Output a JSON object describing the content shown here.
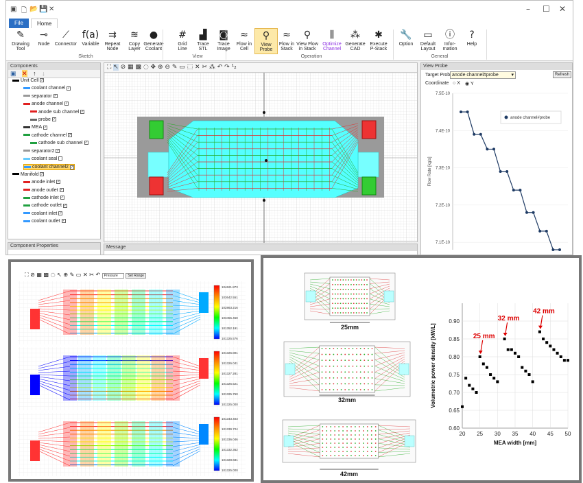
{
  "tabs": {
    "file": "File",
    "home": "Home"
  },
  "ribbon": {
    "buttons": [
      {
        "label": "Drawing\nTool",
        "icon": "pen-icon",
        "glyph": "✎"
      },
      {
        "label": "Node",
        "icon": "node-icon",
        "glyph": "⊸"
      },
      {
        "label": "Connector",
        "icon": "connector-icon",
        "glyph": "⟋"
      },
      {
        "label": "Variable",
        "icon": "fx-icon",
        "glyph": "f(a)"
      },
      {
        "label": "Repeat\nNode",
        "icon": "repeat-icon",
        "glyph": "⇉"
      },
      {
        "label": "Copy\nLayer",
        "icon": "layers-icon",
        "glyph": "≋"
      },
      {
        "label": "Generate\nCoolant",
        "icon": "droplet-icon",
        "glyph": "●"
      },
      {
        "label": "Grid\nLine",
        "icon": "grid-icon",
        "glyph": "#"
      },
      {
        "label": "Trace\nSTL",
        "icon": "trace-icon",
        "glyph": "▟"
      },
      {
        "label": "Trace\nImage",
        "icon": "camera-icon",
        "glyph": "◙"
      },
      {
        "label": "Flow in\nCell",
        "icon": "flow-icon",
        "glyph": "≈"
      },
      {
        "label": "View\nProbe",
        "icon": "magnifier-icon",
        "glyph": "⚲"
      },
      {
        "label": "Flow in\nStack",
        "icon": "stack-icon",
        "glyph": "≈"
      },
      {
        "label": "View Flow\nin Stack",
        "icon": "search-icon",
        "glyph": "⚲"
      },
      {
        "label": "Optimize\nChannel",
        "icon": "sliders-icon",
        "glyph": "⫼"
      },
      {
        "label": "Generate\nCAD",
        "icon": "network-icon",
        "glyph": "⁂"
      },
      {
        "label": "Execute\nP-Stack",
        "icon": "execute-icon",
        "glyph": "✱"
      },
      {
        "label": "Option",
        "icon": "wrench-icon",
        "glyph": "🔧"
      },
      {
        "label": "Default\nLayout",
        "icon": "layout-icon",
        "glyph": "▭"
      },
      {
        "label": "Infor-\nmation",
        "icon": "info-icon",
        "glyph": "ⓘ"
      },
      {
        "label": "Help",
        "icon": "help-icon",
        "glyph": "?"
      }
    ],
    "groups": {
      "sketch": "Sketch",
      "view": "View",
      "operation": "Operation",
      "general": "General"
    }
  },
  "components": {
    "title": "Components",
    "items": [
      {
        "label": "Unit Cell",
        "color": "#000000",
        "checked": true
      },
      {
        "label": "coolant channel",
        "color": "#3399ff",
        "checked": true
      },
      {
        "label": "separator",
        "color": "#999999",
        "checked": true
      },
      {
        "label": "anode channel",
        "color": "#e02020",
        "checked": true
      },
      {
        "label": "anode sub channel",
        "color": "#e02020",
        "checked": true
      },
      {
        "label": "probe",
        "color": "#666666",
        "checked": true
      },
      {
        "label": "MEA",
        "color": "#333333",
        "checked": true
      },
      {
        "label": "cathode channel",
        "color": "#20a040",
        "checked": true
      },
      {
        "label": "cathode sub channel",
        "color": "#20a040",
        "checked": true
      },
      {
        "label": "separator2",
        "color": "#999999",
        "checked": true
      },
      {
        "label": "coolant seal",
        "color": "#66ccff",
        "checked": false
      },
      {
        "label": "coolant channel2",
        "color": "#3399ff",
        "checked": true
      },
      {
        "label": "Manifold",
        "color": "#000000",
        "checked": true
      },
      {
        "label": "anode inlet",
        "color": "#e02020",
        "checked": true
      },
      {
        "label": "anode outlet",
        "color": "#e02020",
        "checked": true
      },
      {
        "label": "cathode inlet",
        "color": "#20a040",
        "checked": true
      },
      {
        "label": "cathode outlet",
        "color": "#20a040",
        "checked": true
      },
      {
        "label": "coolant inlet",
        "color": "#3399ff",
        "checked": true
      },
      {
        "label": "coolant outlet",
        "color": "#3399ff",
        "checked": true
      }
    ]
  },
  "props": {
    "title": "Component Properties"
  },
  "messages": {
    "title": "Message"
  },
  "probe": {
    "title": "View Probe",
    "target_label": "Target Probe",
    "target_value": "anode channel#probe",
    "refresh": "Refresh",
    "coord_label": "Coordinate",
    "coord_x": "X",
    "coord_y": "Y"
  },
  "chart_data": [
    {
      "type": "line",
      "title": "",
      "ylabel": "Flow Rate [kg/s]",
      "xlabel": "",
      "ylim": [
        7.08e-10,
        7.5e-10
      ],
      "yticks": [
        "7.5E-10",
        "7.4E-10",
        "7.3E-10",
        "7.2E-10",
        "7.1E-10"
      ],
      "legend": "top-right",
      "series": [
        {
          "name": "anode channel#probe",
          "x": [
            1,
            2,
            3,
            4,
            5,
            6,
            7,
            8,
            9,
            10,
            11,
            12,
            13,
            14,
            15,
            16
          ],
          "values": [
            7.45e-10,
            7.45e-10,
            7.39e-10,
            7.39e-10,
            7.35e-10,
            7.35e-10,
            7.29e-10,
            7.29e-10,
            7.24e-10,
            7.24e-10,
            7.18e-10,
            7.18e-10,
            7.13e-10,
            7.13e-10,
            7.08e-10,
            7.08e-10
          ]
        }
      ]
    },
    {
      "type": "scatter",
      "xlabel": "MEA width [mm]",
      "ylabel": "Volumetric power density [kW/L]",
      "xlim": [
        20,
        50
      ],
      "ylim": [
        0.6,
        0.95
      ],
      "xticks": [
        20,
        25,
        30,
        35,
        40,
        45,
        50
      ],
      "yticks": [
        0.6,
        0.65,
        0.7,
        0.75,
        0.8,
        0.85,
        0.9
      ],
      "annotations": [
        {
          "text": "25 mm",
          "x": 25,
          "y": 0.8
        },
        {
          "text": "32 mm",
          "x": 32,
          "y": 0.85
        },
        {
          "text": "42 mm",
          "x": 42,
          "y": 0.87
        }
      ],
      "series": [
        {
          "x": [
            20,
            21,
            22,
            23,
            24,
            25,
            26,
            27,
            28,
            29,
            30,
            32,
            33,
            34,
            35,
            36,
            37,
            38,
            39,
            40,
            42,
            43,
            44,
            45,
            46,
            47,
            48,
            49,
            50
          ],
          "values": [
            0.66,
            0.74,
            0.72,
            0.71,
            0.7,
            0.8,
            0.78,
            0.77,
            0.75,
            0.74,
            0.73,
            0.85,
            0.82,
            0.82,
            0.81,
            0.8,
            0.77,
            0.76,
            0.75,
            0.73,
            0.87,
            0.85,
            0.84,
            0.83,
            0.82,
            0.81,
            0.8,
            0.79,
            0.79
          ]
        }
      ]
    }
  ],
  "colorbars": [
    {
      "ticks": [
        "104621.873",
        "103642.551",
        "102863.216",
        "103455.458",
        "101352.191",
        "101325.576"
      ]
    },
    {
      "ticks": [
        "101326.801",
        "101326.041",
        "101327.281",
        "101326.521",
        "101325.760",
        "101325.000"
      ]
    },
    {
      "ticks": [
        "101343.403",
        "101339.724",
        "101336.046",
        "101332.362",
        "101328.681",
        "101325.000"
      ]
    }
  ],
  "inset_toolbar": {
    "field": "Pressure",
    "set_range": "Set Range"
  },
  "mea_labels": [
    "25mm",
    "32mm",
    "42mm"
  ]
}
